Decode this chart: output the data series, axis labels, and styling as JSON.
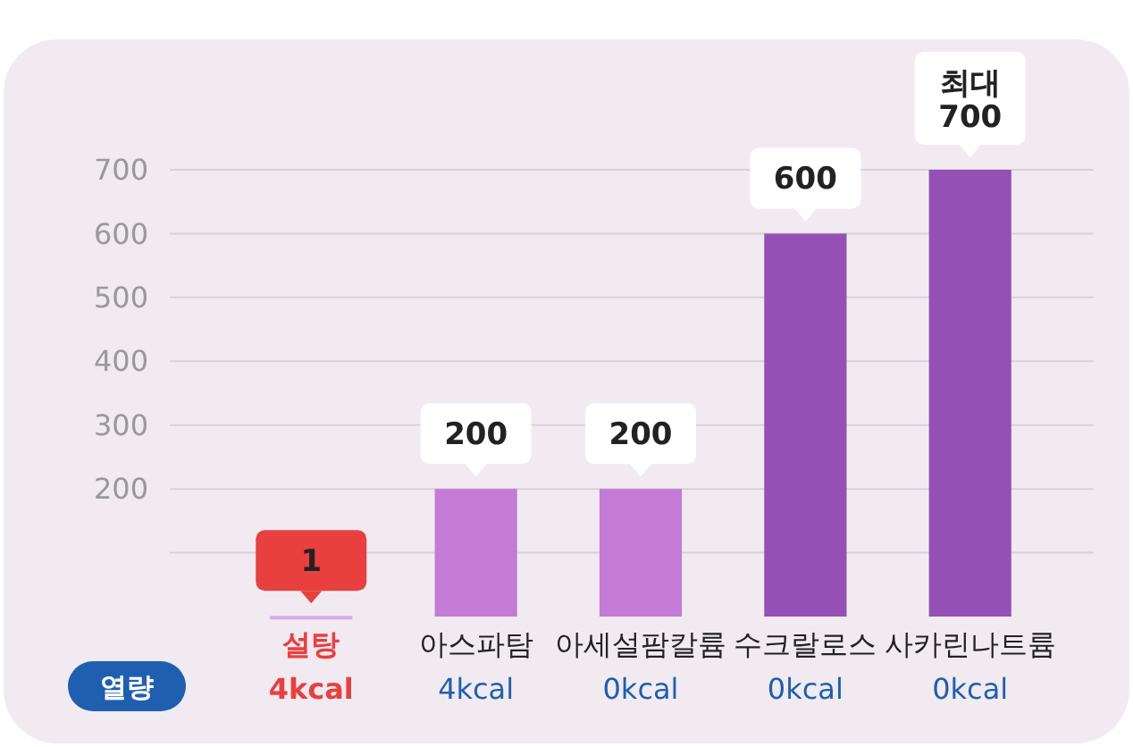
{
  "chart_data": {
    "type": "bar",
    "categories": [
      "설탕",
      "아스파탐",
      "아세설팜칼륨",
      "수크랄로스",
      "사카린나트륨"
    ],
    "values": [
      1,
      200,
      200,
      600,
      700
    ],
    "colors": [
      "#dba8e6",
      "#c47bd6",
      "#c47bd6",
      "#9550b5",
      "#9550b5"
    ],
    "value_labels": [
      "1",
      "200",
      "200",
      "600",
      "최대\n700"
    ],
    "ylim": [
      0,
      700
    ],
    "yticks": [
      {
        "value": 100,
        "label": null
      },
      200,
      300,
      400,
      500,
      600,
      700
    ],
    "grid": "y",
    "annotations": [
      "열량",
      "4kcal",
      "4kcal",
      "0kcal",
      "0kcal",
      "0kcal"
    ]
  }
}
